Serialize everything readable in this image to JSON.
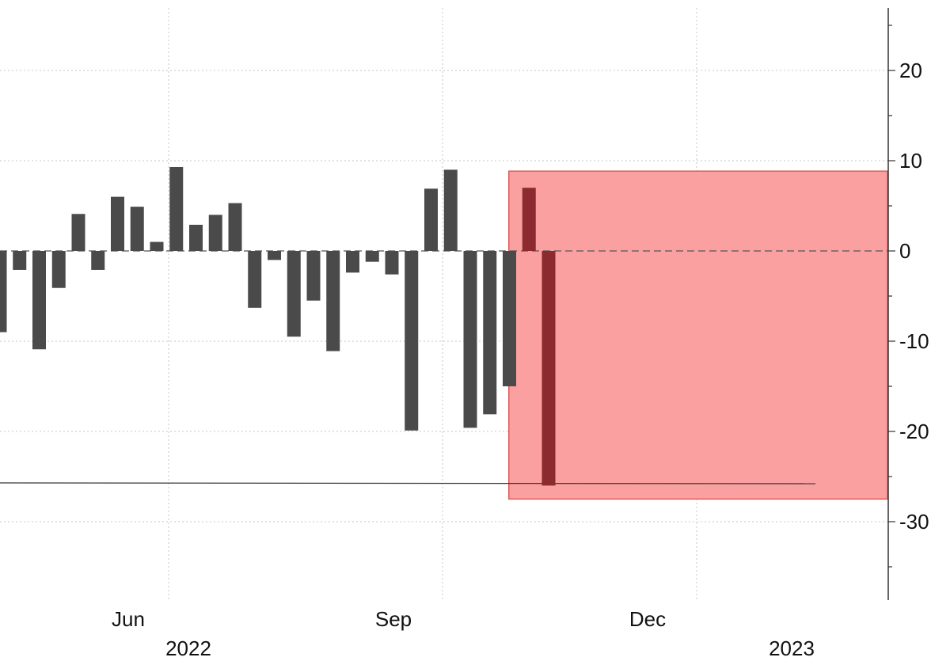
{
  "chart_data": {
    "type": "bar",
    "title": "",
    "xlabel": "",
    "ylabel": "",
    "ylim": [
      -38,
      27
    ],
    "y_axis_side": "right",
    "y_ticks": [
      20,
      10,
      0,
      -10,
      -20,
      -30
    ],
    "y_tick_labels": [
      "20",
      "10",
      "0",
      "-10",
      "-20",
      "-30"
    ],
    "x_tick_labels": [
      "Jun",
      "Sep",
      "Dec"
    ],
    "year_labels": [
      "2022",
      "2023"
    ],
    "grid": true,
    "reference_line_value": -25.7,
    "series": [
      {
        "values": [
          -9.0,
          -2.1,
          -10.9,
          -4.1,
          4.1,
          -2.1,
          6.0,
          4.9,
          1.0,
          9.3,
          2.9,
          4.0,
          5.3,
          -6.3,
          -1.0,
          -9.5,
          -5.5,
          -11.1,
          -2.4,
          -1.2,
          -2.6,
          -19.9,
          6.9,
          9.0,
          -19.6,
          -18.1,
          -15.0,
          7.0,
          -26.0
        ],
        "highlight_last": 2,
        "color": "#4a4a4a",
        "highlight_color": "#8b2a2f"
      }
    ],
    "highlight_box": {
      "fill": "#fba0a0",
      "stroke": "#e05a5a"
    }
  }
}
